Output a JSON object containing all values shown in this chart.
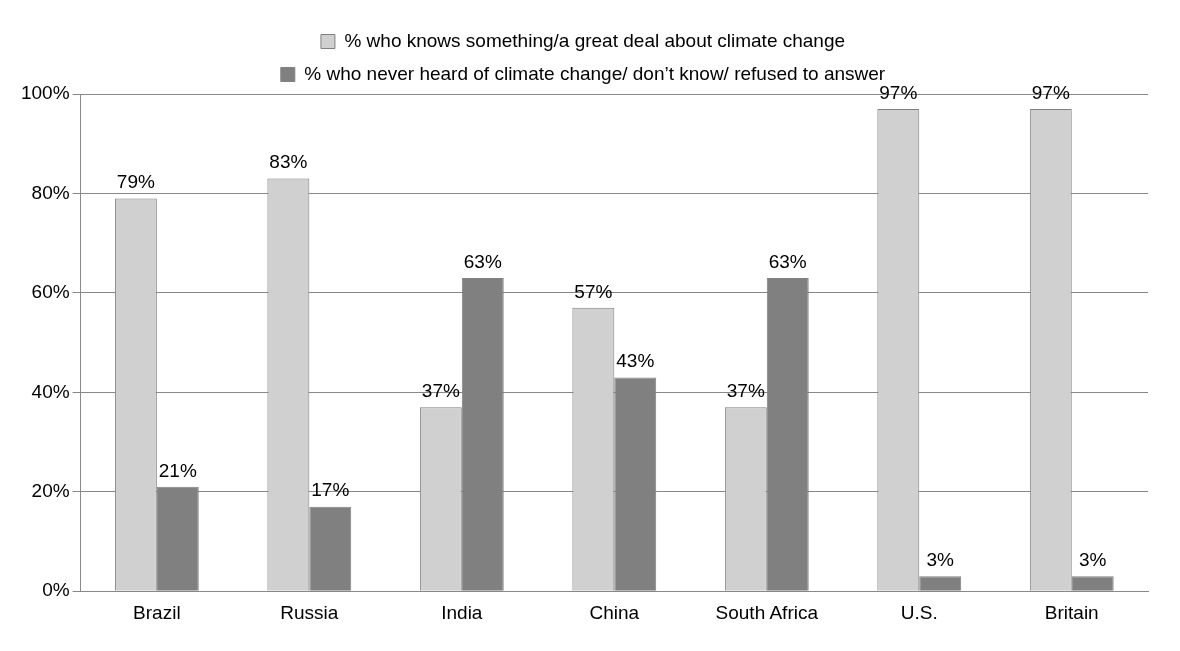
{
  "chart_data": {
    "type": "bar",
    "categories": [
      "Brazil",
      "Russia",
      "India",
      "China",
      "South Africa",
      "U.S.",
      "Britain"
    ],
    "series": [
      {
        "name": "% who knows something/a great deal about climate change",
        "color": "#d0d0d0",
        "values": [
          79,
          83,
          37,
          57,
          37,
          97,
          97
        ],
        "value_labels": [
          "79%",
          "83%",
          "37%",
          "57%",
          "37%",
          "97%",
          "97%"
        ]
      },
      {
        "name": "% who never heard of climate change/ don’t know/ refused to answer",
        "color": "#808080",
        "values": [
          21,
          17,
          63,
          43,
          63,
          3,
          3
        ],
        "value_labels": [
          "21%",
          "17%",
          "63%",
          "43%",
          "63%",
          "3%",
          "3%"
        ]
      }
    ],
    "ylim": [
      0,
      100
    ],
    "yticks": [
      {
        "value": 0,
        "label": "0%"
      },
      {
        "value": 20,
        "label": "20%"
      },
      {
        "value": 40,
        "label": "40%"
      },
      {
        "value": 60,
        "label": "60%"
      },
      {
        "value": 80,
        "label": "80%"
      },
      {
        "value": 100,
        "label": "100%"
      }
    ],
    "grid": "y",
    "legend": "top"
  }
}
